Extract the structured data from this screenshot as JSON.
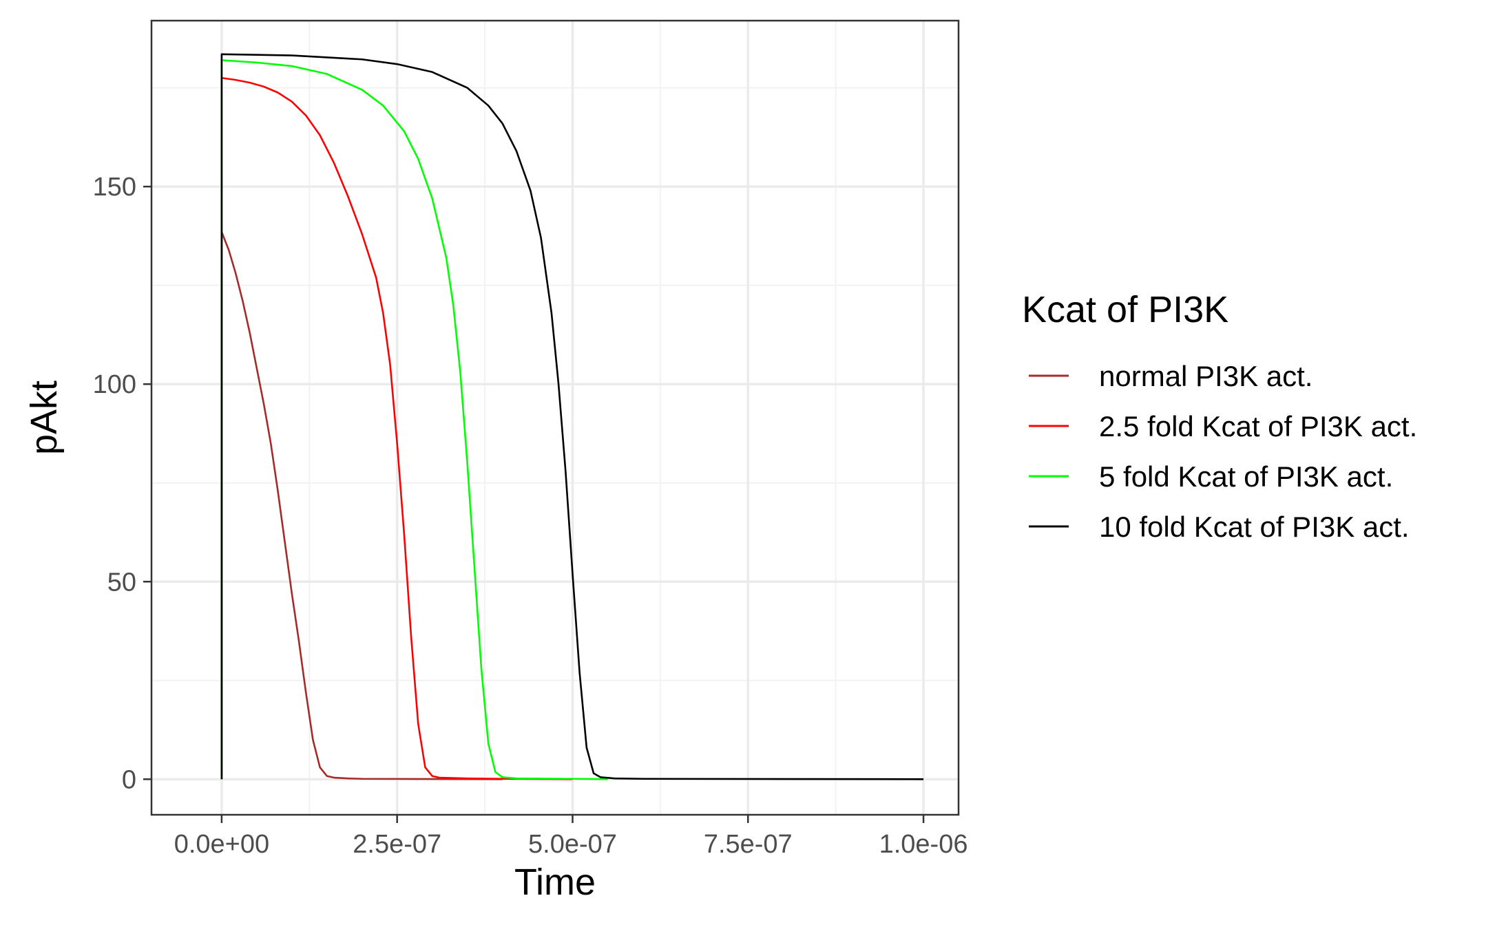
{
  "chart_data": {
    "type": "line",
    "title": "",
    "xlabel": "Time",
    "ylabel": "pAkt",
    "xlim": [
      -1e-07,
      1.05e-06
    ],
    "ylim": [
      -9,
      192
    ],
    "x_ticks": [
      0,
      2.5e-07,
      5e-07,
      7.5e-07,
      1e-06
    ],
    "x_tick_labels": [
      "0.0e+00",
      "2.5e-07",
      "5.0e-07",
      "7.5e-07",
      "1.0e-06"
    ],
    "y_ticks": [
      0,
      50,
      100,
      150
    ],
    "y_tick_labels": [
      "0",
      "50",
      "100",
      "150"
    ],
    "grid": true,
    "legend": {
      "title": "Kcat of PI3K",
      "placement": "right"
    },
    "series": [
      {
        "name": "normal PI3K act.",
        "color": "#a52a2a",
        "points": [
          [
            0,
            0
          ],
          [
            0,
            138.5
          ],
          [
            1e-08,
            134
          ],
          [
            2e-08,
            128
          ],
          [
            3e-08,
            121
          ],
          [
            4e-08,
            113
          ],
          [
            5e-08,
            104
          ],
          [
            6e-08,
            95
          ],
          [
            7e-08,
            85
          ],
          [
            8e-08,
            73
          ],
          [
            9e-08,
            60
          ],
          [
            1e-07,
            47
          ],
          [
            1.1e-07,
            35
          ],
          [
            1.2e-07,
            22
          ],
          [
            1.3e-07,
            10
          ],
          [
            1.4e-07,
            3
          ],
          [
            1.5e-07,
            0.8
          ],
          [
            1.6e-07,
            0.4
          ],
          [
            1.8e-07,
            0.2
          ],
          [
            2e-07,
            0.1
          ],
          [
            3e-07,
            0.05
          ],
          [
            4e-07,
            0
          ]
        ]
      },
      {
        "name": "2.5 fold Kcat of PI3K act.",
        "color": "#ff0000",
        "points": [
          [
            0,
            0
          ],
          [
            0,
            177.5
          ],
          [
            2e-08,
            177
          ],
          [
            4e-08,
            176.3
          ],
          [
            6e-08,
            175.3
          ],
          [
            8e-08,
            173.8
          ],
          [
            1e-07,
            171.5
          ],
          [
            1.2e-07,
            168
          ],
          [
            1.4e-07,
            163
          ],
          [
            1.6e-07,
            156
          ],
          [
            1.8e-07,
            147.5
          ],
          [
            2e-07,
            138
          ],
          [
            2.2e-07,
            127
          ],
          [
            2.3e-07,
            118
          ],
          [
            2.4e-07,
            105
          ],
          [
            2.5e-07,
            85
          ],
          [
            2.6e-07,
            62
          ],
          [
            2.7e-07,
            36
          ],
          [
            2.8e-07,
            14
          ],
          [
            2.9e-07,
            3
          ],
          [
            3e-07,
            0.8
          ],
          [
            3.1e-07,
            0.4
          ],
          [
            3.5e-07,
            0.2
          ],
          [
            4e-07,
            0.1
          ],
          [
            5e-07,
            0
          ]
        ]
      },
      {
        "name": "5 fold Kcat of PI3K act.",
        "color": "#00ff00",
        "points": [
          [
            0,
            0
          ],
          [
            0,
            182
          ],
          [
            5e-08,
            181.4
          ],
          [
            1e-07,
            180.5
          ],
          [
            1.5e-07,
            178.5
          ],
          [
            2e-07,
            174.5
          ],
          [
            2.3e-07,
            170.5
          ],
          [
            2.6e-07,
            164
          ],
          [
            2.8e-07,
            157
          ],
          [
            3e-07,
            147
          ],
          [
            3.2e-07,
            132
          ],
          [
            3.3e-07,
            120
          ],
          [
            3.4e-07,
            103
          ],
          [
            3.5e-07,
            80
          ],
          [
            3.6e-07,
            54
          ],
          [
            3.7e-07,
            28
          ],
          [
            3.8e-07,
            9
          ],
          [
            3.9e-07,
            1.8
          ],
          [
            4e-07,
            0.5
          ],
          [
            4.2e-07,
            0.2
          ],
          [
            5e-07,
            0.1
          ],
          [
            5.5e-07,
            0
          ]
        ]
      },
      {
        "name": "10 fold Kcat of PI3K act.",
        "color": "#000000",
        "points": [
          [
            0,
            0
          ],
          [
            0,
            183.5
          ],
          [
            1e-07,
            183.2
          ],
          [
            2e-07,
            182.2
          ],
          [
            2.5e-07,
            181
          ],
          [
            3e-07,
            179
          ],
          [
            3.5e-07,
            175
          ],
          [
            3.8e-07,
            170.5
          ],
          [
            4e-07,
            166
          ],
          [
            4.2e-07,
            159
          ],
          [
            4.4e-07,
            149
          ],
          [
            4.55e-07,
            137
          ],
          [
            4.7e-07,
            118
          ],
          [
            4.8e-07,
            100
          ],
          [
            4.9e-07,
            78
          ],
          [
            5e-07,
            52
          ],
          [
            5.1e-07,
            27
          ],
          [
            5.2e-07,
            8
          ],
          [
            5.3e-07,
            1.5
          ],
          [
            5.4e-07,
            0.5
          ],
          [
            5.6e-07,
            0.2
          ],
          [
            6e-07,
            0.1
          ],
          [
            1e-06,
            0
          ]
        ]
      }
    ]
  }
}
